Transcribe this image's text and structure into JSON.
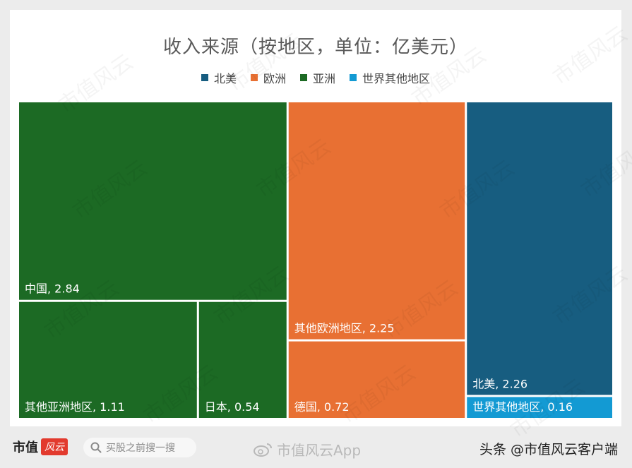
{
  "chart_data": {
    "type": "treemap",
    "title": "收入来源（按地区，单位：亿美元）",
    "legend": [
      {
        "name": "北美",
        "color": "#175d80"
      },
      {
        "name": "欧洲",
        "color": "#e87033"
      },
      {
        "name": "亚洲",
        "color": "#1c6a24"
      },
      {
        "name": "世界其他地区",
        "color": "#139ad3"
      }
    ],
    "groups": [
      {
        "name": "亚洲",
        "color": "#1c6a24",
        "items": [
          {
            "label": "中国",
            "value": 2.84
          },
          {
            "label": "其他亚洲地区",
            "value": 1.11
          },
          {
            "label": "日本",
            "value": 0.54
          }
        ]
      },
      {
        "name": "欧洲",
        "color": "#e87033",
        "items": [
          {
            "label": "其他欧洲地区",
            "value": 2.25
          },
          {
            "label": "德国",
            "value": 0.72
          }
        ]
      },
      {
        "name": "北美",
        "color": "#175d80",
        "items": [
          {
            "label": "北美",
            "value": 2.26
          }
        ]
      },
      {
        "name": "世界其他地区",
        "color": "#139ad3",
        "items": [
          {
            "label": "世界其他地区",
            "value": 0.16
          }
        ]
      }
    ]
  },
  "watermark_text": "市值风云",
  "footer": {
    "brand_name": "市值",
    "brand_badge": "风云",
    "search_placeholder": "买股之前搜一搜",
    "weibo_text": "市值风云App",
    "credit": "头条 @市值风云客户端",
    "icons": {
      "search": "search-icon",
      "weibo": "weibo-icon"
    }
  }
}
